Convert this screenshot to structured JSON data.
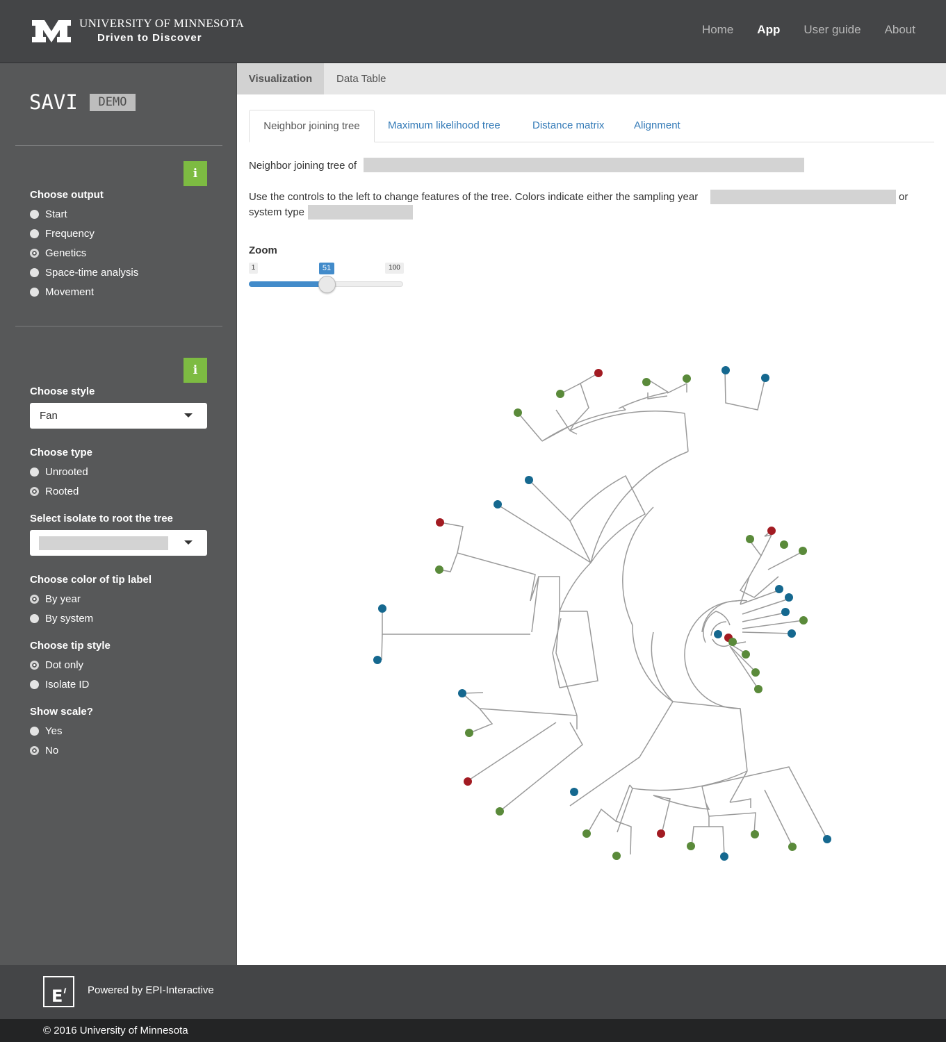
{
  "header": {
    "logo_line1": "UNIVERSITY OF MINNESOTA",
    "logo_line2": "Driven to Discover",
    "nav": {
      "home": "Home",
      "app": "App",
      "user_guide": "User guide",
      "about": "About"
    }
  },
  "sidebar": {
    "title": "SAVI",
    "badge": "DEMO",
    "info_glyph": "i",
    "output": {
      "label": "Choose output",
      "options": [
        "Start",
        "Frequency",
        "Genetics",
        "Space-time analysis",
        "Movement"
      ],
      "selected": "Genetics"
    },
    "style": {
      "label": "Choose style",
      "value": "Fan"
    },
    "type": {
      "label": "Choose type",
      "options": [
        "Unrooted",
        "Rooted"
      ],
      "selected": "Rooted"
    },
    "root_isolate": {
      "label": "Select isolate to root the tree"
    },
    "tip_color": {
      "label": "Choose color of tip label",
      "options": [
        "By year",
        "By system"
      ],
      "selected": "By year"
    },
    "tip_style": {
      "label": "Choose tip style",
      "options": [
        "Dot only",
        "Isolate ID"
      ],
      "selected": "Dot only"
    },
    "scale": {
      "label": "Show scale?",
      "options": [
        "Yes",
        "No"
      ],
      "selected": "No"
    }
  },
  "main": {
    "tabs": [
      "Visualization",
      "Data Table"
    ],
    "subtabs": [
      "Neighbor joining tree",
      "Maximum likelihood tree",
      "Distance matrix",
      "Alignment"
    ],
    "tree_heading": "Neighbor joining tree of",
    "instructions_1": "Use the controls to the left to change features of the tree. Colors indicate either the sampling year",
    "instructions_or": "or",
    "instructions_2": "system type",
    "zoom": {
      "label": "Zoom",
      "min": "1",
      "max": "100",
      "value": "51",
      "fraction": 0.505
    }
  },
  "tree_colors": {
    "red": "#a21b22",
    "green": "#5a8a3a",
    "blue": "#15688f",
    "branch": "#9a9a9a"
  },
  "footer": {
    "powered": "Powered by EPI-Interactive",
    "logo_letter": "E",
    "logo_sup": "i",
    "copyright": "© 2016 University of Minnesota"
  }
}
